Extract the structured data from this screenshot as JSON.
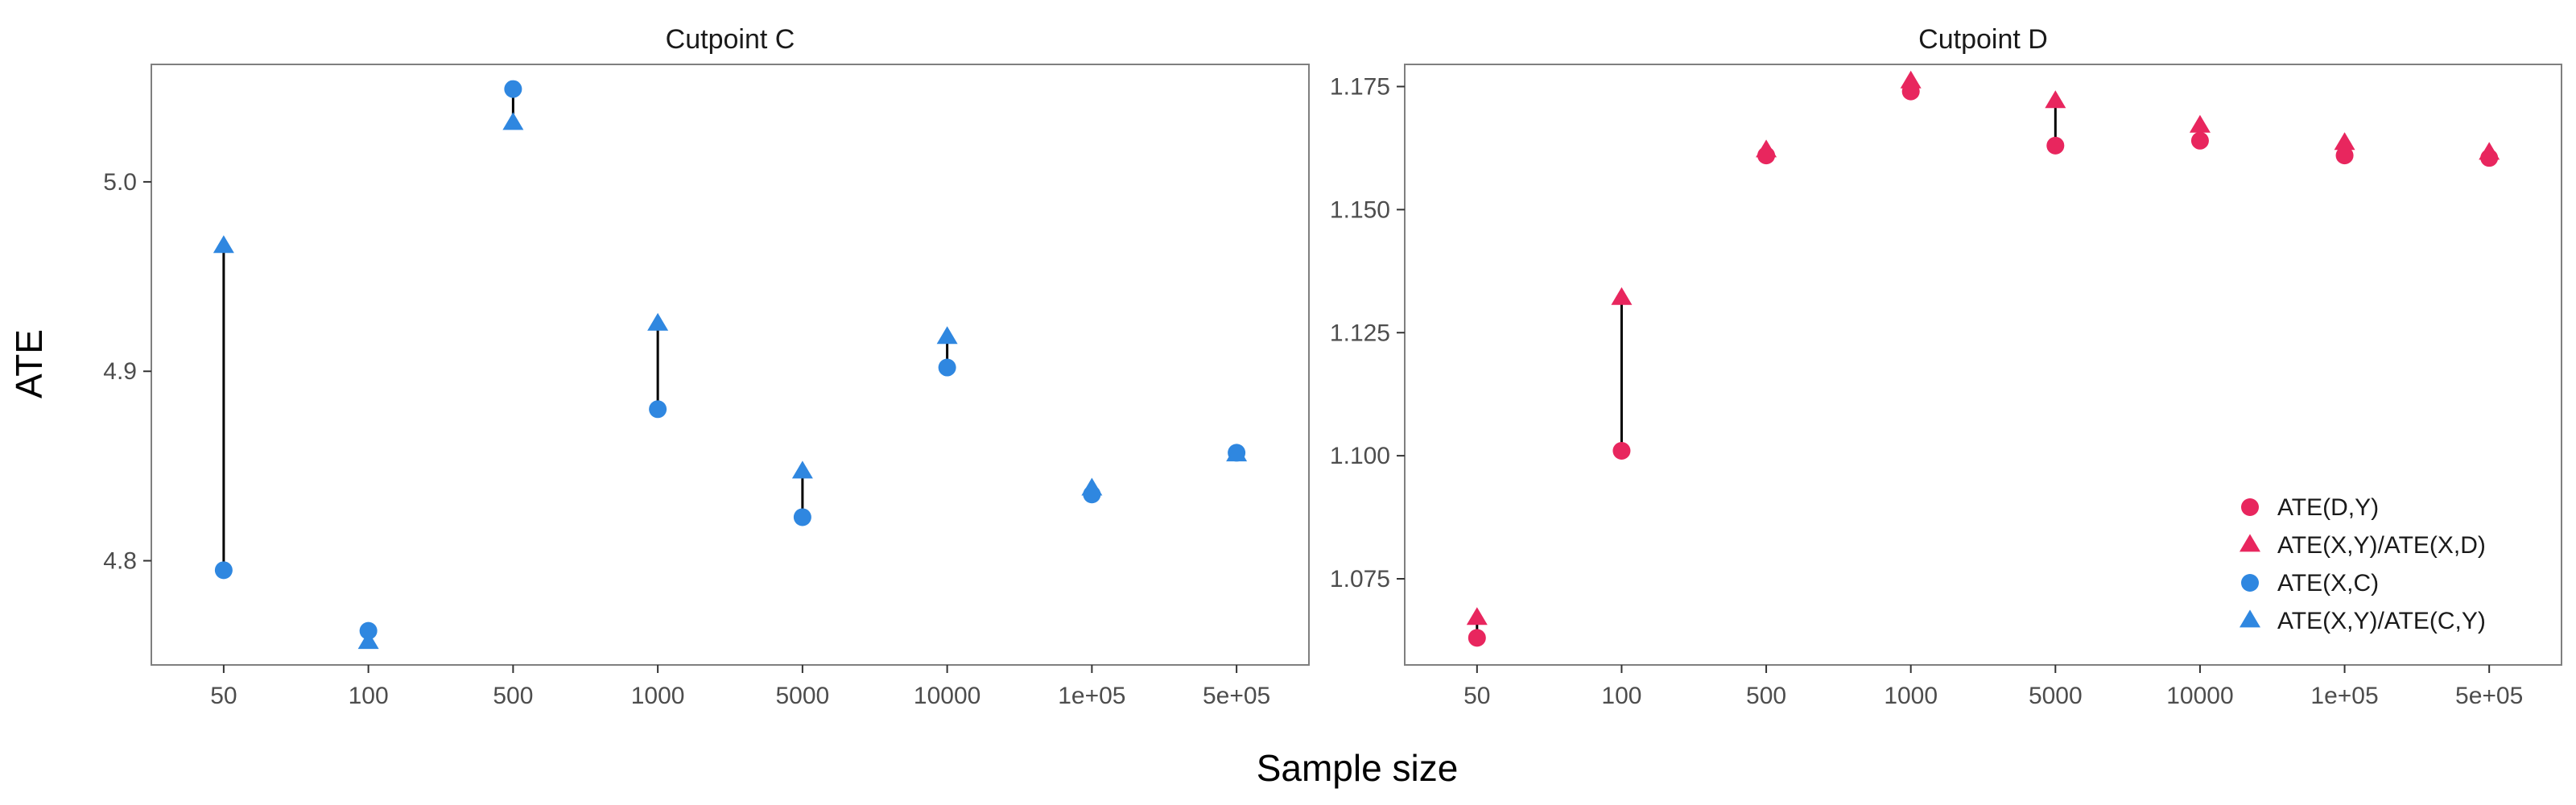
{
  "chart_data": {
    "type": "scatter",
    "xlabel": "Sample size",
    "ylabel": "ATE",
    "categories": [
      "50",
      "100",
      "500",
      "1000",
      "5000",
      "10000",
      "1e+05",
      "5e+05"
    ],
    "legend": {
      "position": "bottom-right",
      "entries": [
        {
          "label": "ATE(D,Y)",
          "shape": "circle",
          "color": "#E8265E"
        },
        {
          "label": "ATE(X,Y)/ATE(X,D)",
          "shape": "triangle",
          "color": "#E8265E"
        },
        {
          "label": "ATE(X,C)",
          "shape": "circle",
          "color": "#2F87E0"
        },
        {
          "label": "ATE(X,Y)/ATE(C,Y)",
          "shape": "triangle",
          "color": "#2F87E0"
        }
      ]
    },
    "panels": [
      {
        "title": "Cutpoint C",
        "color": "#2F87E0",
        "ylim": [
          4.745,
          5.062
        ],
        "yticks": [
          4.8,
          4.9,
          5.0
        ],
        "ytick_labels": [
          "4.8",
          "4.9",
          "5.0"
        ],
        "series": [
          {
            "name": "ATE(X,C)",
            "shape": "circle",
            "values": [
              4.795,
              4.763,
              5.049,
              4.88,
              4.823,
              4.902,
              4.835,
              4.857
            ]
          },
          {
            "name": "ATE(X,Y)/ATE(C,Y)",
            "shape": "triangle",
            "values": [
              4.966,
              4.757,
              5.031,
              4.925,
              4.847,
              4.918,
              4.838,
              4.856
            ]
          }
        ]
      },
      {
        "title": "Cutpoint D",
        "color": "#E8265E",
        "ylim": [
          1.0575,
          1.1795
        ],
        "yticks": [
          1.075,
          1.1,
          1.125,
          1.15,
          1.175
        ],
        "ytick_labels": [
          "1.075",
          "1.100",
          "1.125",
          "1.150",
          "1.175"
        ],
        "series": [
          {
            "name": "ATE(D,Y)",
            "shape": "circle",
            "values": [
              1.063,
              1.101,
              1.161,
              1.174,
              1.163,
              1.164,
              1.161,
              1.1605
            ]
          },
          {
            "name": "ATE(X,Y)/ATE(X,D)",
            "shape": "triangle",
            "values": [
              1.067,
              1.132,
              1.162,
              1.176,
              1.172,
              1.167,
              1.1635,
              1.1615
            ]
          }
        ]
      }
    ]
  }
}
